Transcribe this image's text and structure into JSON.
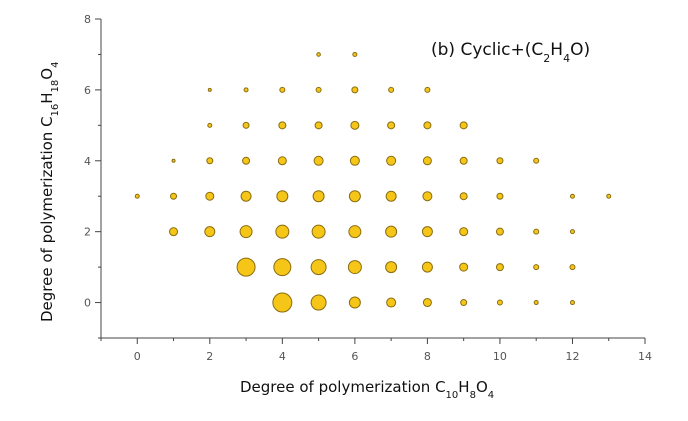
{
  "chart_data": {
    "type": "scatter",
    "style": "bubble",
    "title": "(b) Cyclic+(C2H4O)",
    "title_parts": [
      {
        "text": "(b) Cyclic+(C",
        "sub": false
      },
      {
        "text": "2",
        "sub": true
      },
      {
        "text": "H",
        "sub": false
      },
      {
        "text": "4",
        "sub": true
      },
      {
        "text": "O)",
        "sub": false
      }
    ],
    "xlabel": "Degree of polymerization C10H8O4",
    "xlabel_parts": [
      {
        "text": "Degree of polymerization C",
        "sub": false
      },
      {
        "text": "10",
        "sub": true
      },
      {
        "text": "H",
        "sub": false
      },
      {
        "text": "8",
        "sub": true
      },
      {
        "text": "O",
        "sub": false
      },
      {
        "text": "4",
        "sub": true
      }
    ],
    "ylabel": "Degree of polymerization C16H18O4",
    "ylabel_parts": [
      {
        "text": "Degree of polymerization C",
        "sub": false
      },
      {
        "text": "16",
        "sub": true
      },
      {
        "text": "H",
        "sub": false
      },
      {
        "text": "18",
        "sub": true
      },
      {
        "text": "O",
        "sub": false
      },
      {
        "text": "4",
        "sub": true
      }
    ],
    "xlim": [
      -1,
      14
    ],
    "ylim": [
      -1,
      8
    ],
    "xticks": [
      0,
      2,
      4,
      6,
      8,
      10,
      12,
      14
    ],
    "yticks": [
      0,
      2,
      4,
      6,
      8
    ],
    "grid": false,
    "color": "#F5C518",
    "edge_color": "#8a6d10",
    "points": [
      {
        "x": 4,
        "y": 0,
        "size": 9.5
      },
      {
        "x": 5,
        "y": 0,
        "size": 7.5
      },
      {
        "x": 6,
        "y": 0,
        "size": 5.5
      },
      {
        "x": 7,
        "y": 0,
        "size": 4.5
      },
      {
        "x": 8,
        "y": 0,
        "size": 4
      },
      {
        "x": 9,
        "y": 0,
        "size": 3
      },
      {
        "x": 10,
        "y": 0,
        "size": 2.5
      },
      {
        "x": 11,
        "y": 0,
        "size": 2
      },
      {
        "x": 12,
        "y": 0,
        "size": 2
      },
      {
        "x": 3,
        "y": 1,
        "size": 9
      },
      {
        "x": 4,
        "y": 1,
        "size": 8.5
      },
      {
        "x": 5,
        "y": 1,
        "size": 7.5
      },
      {
        "x": 6,
        "y": 1,
        "size": 6.5
      },
      {
        "x": 7,
        "y": 1,
        "size": 5.5
      },
      {
        "x": 8,
        "y": 1,
        "size": 5
      },
      {
        "x": 9,
        "y": 1,
        "size": 4
      },
      {
        "x": 10,
        "y": 1,
        "size": 3.5
      },
      {
        "x": 11,
        "y": 1,
        "size": 2.5
      },
      {
        "x": 12,
        "y": 1,
        "size": 2.5
      },
      {
        "x": 1,
        "y": 2,
        "size": 4
      },
      {
        "x": 2,
        "y": 2,
        "size": 5
      },
      {
        "x": 3,
        "y": 2,
        "size": 6
      },
      {
        "x": 4,
        "y": 2,
        "size": 6.5
      },
      {
        "x": 5,
        "y": 2,
        "size": 6.5
      },
      {
        "x": 6,
        "y": 2,
        "size": 6
      },
      {
        "x": 7,
        "y": 2,
        "size": 5.5
      },
      {
        "x": 8,
        "y": 2,
        "size": 5
      },
      {
        "x": 9,
        "y": 2,
        "size": 4
      },
      {
        "x": 10,
        "y": 2,
        "size": 3.5
      },
      {
        "x": 11,
        "y": 2,
        "size": 2.5
      },
      {
        "x": 12,
        "y": 2,
        "size": 2
      },
      {
        "x": 0,
        "y": 3,
        "size": 2
      },
      {
        "x": 1,
        "y": 3,
        "size": 3
      },
      {
        "x": 2,
        "y": 3,
        "size": 4
      },
      {
        "x": 3,
        "y": 3,
        "size": 5
      },
      {
        "x": 4,
        "y": 3,
        "size": 5.5
      },
      {
        "x": 5,
        "y": 3,
        "size": 5.5
      },
      {
        "x": 6,
        "y": 3,
        "size": 5.5
      },
      {
        "x": 7,
        "y": 3,
        "size": 5
      },
      {
        "x": 8,
        "y": 3,
        "size": 4.5
      },
      {
        "x": 9,
        "y": 3,
        "size": 3.5
      },
      {
        "x": 10,
        "y": 3,
        "size": 3
      },
      {
        "x": 12,
        "y": 3,
        "size": 2
      },
      {
        "x": 13,
        "y": 3,
        "size": 2
      },
      {
        "x": 1,
        "y": 4,
        "size": 1.5
      },
      {
        "x": 2,
        "y": 4,
        "size": 3
      },
      {
        "x": 3,
        "y": 4,
        "size": 3.5
      },
      {
        "x": 4,
        "y": 4,
        "size": 4
      },
      {
        "x": 5,
        "y": 4,
        "size": 4.5
      },
      {
        "x": 6,
        "y": 4,
        "size": 4.5
      },
      {
        "x": 7,
        "y": 4,
        "size": 4.5
      },
      {
        "x": 8,
        "y": 4,
        "size": 4
      },
      {
        "x": 9,
        "y": 4,
        "size": 3.5
      },
      {
        "x": 10,
        "y": 4,
        "size": 3
      },
      {
        "x": 11,
        "y": 4,
        "size": 2.5
      },
      {
        "x": 2,
        "y": 5,
        "size": 2
      },
      {
        "x": 3,
        "y": 5,
        "size": 3
      },
      {
        "x": 4,
        "y": 5,
        "size": 3.5
      },
      {
        "x": 5,
        "y": 5,
        "size": 3.5
      },
      {
        "x": 6,
        "y": 5,
        "size": 4
      },
      {
        "x": 7,
        "y": 5,
        "size": 3.5
      },
      {
        "x": 8,
        "y": 5,
        "size": 3.5
      },
      {
        "x": 9,
        "y": 5,
        "size": 3.5
      },
      {
        "x": 2,
        "y": 6,
        "size": 1.5
      },
      {
        "x": 3,
        "y": 6,
        "size": 2
      },
      {
        "x": 4,
        "y": 6,
        "size": 2.5
      },
      {
        "x": 5,
        "y": 6,
        "size": 2.5
      },
      {
        "x": 6,
        "y": 6,
        "size": 3
      },
      {
        "x": 7,
        "y": 6,
        "size": 2.5
      },
      {
        "x": 8,
        "y": 6,
        "size": 2.5
      },
      {
        "x": 5,
        "y": 7,
        "size": 1.8
      },
      {
        "x": 6,
        "y": 7,
        "size": 2
      }
    ]
  }
}
